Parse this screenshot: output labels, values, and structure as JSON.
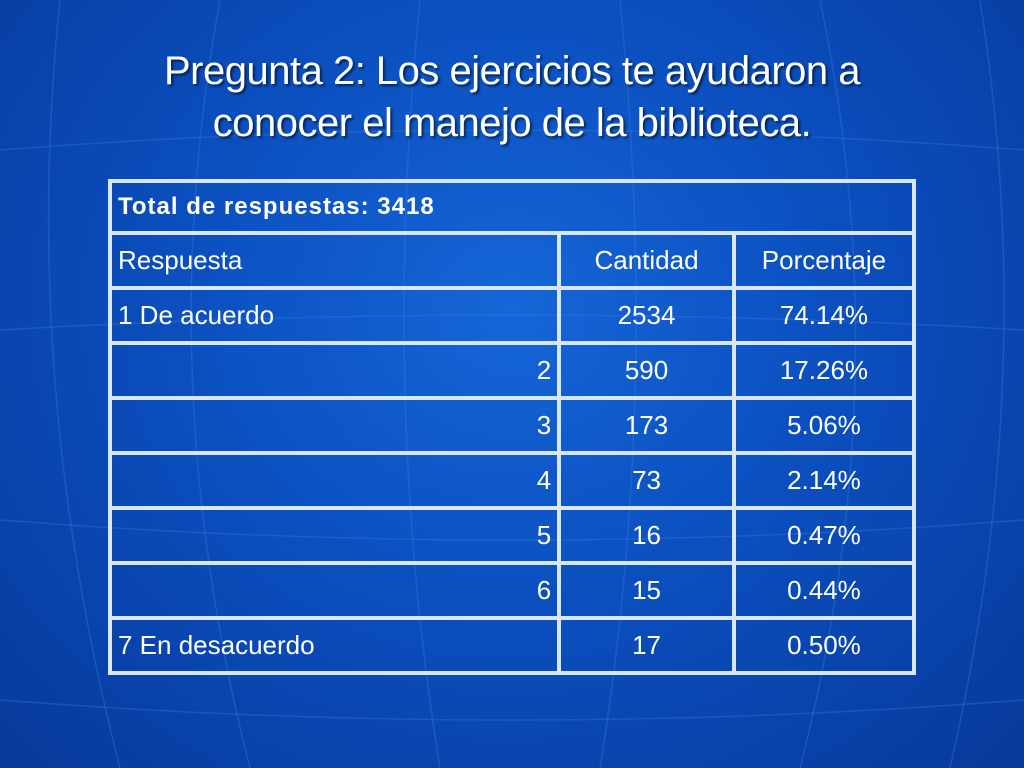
{
  "slide": {
    "title_line1": "Pregunta 2: Los ejercicios te ayudaron a",
    "title_line2": "conocer el manejo de la biblioteca."
  },
  "table": {
    "total_label": "Total de respuestas:",
    "total_value": "3418",
    "headers": [
      "Respuesta",
      "Cantidad",
      "Porcentaje"
    ],
    "rows": [
      {
        "respuesta": "1 De acuerdo",
        "cantidad": "2534",
        "porcentaje": "74.14%"
      },
      {
        "respuesta": "2",
        "cantidad": "590",
        "porcentaje": "17.26%"
      },
      {
        "respuesta": "3",
        "cantidad": "173",
        "porcentaje": "5.06%"
      },
      {
        "respuesta": "4",
        "cantidad": "73",
        "porcentaje": "2.14%"
      },
      {
        "respuesta": "5",
        "cantidad": "16",
        "porcentaje": "0.47%"
      },
      {
        "respuesta": "6",
        "cantidad": "15",
        "porcentaje": "0.44%"
      },
      {
        "respuesta": "7 En desacuerdo",
        "cantidad": "17",
        "porcentaje": "0.50%"
      }
    ]
  },
  "colors": {
    "background": "#0b4fbf",
    "border": "#d8e6f5",
    "text": "#ffffff"
  }
}
